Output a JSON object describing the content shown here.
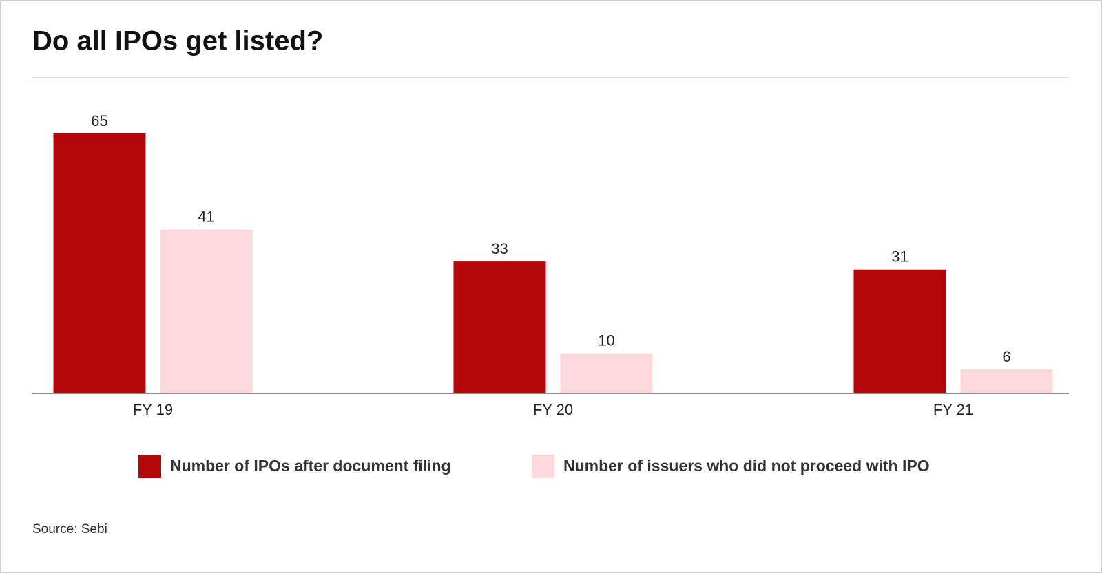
{
  "chart_data": {
    "type": "bar",
    "title": "Do all IPOs get listed?",
    "categories": [
      "FY 19",
      "FY 20",
      "FY 21"
    ],
    "series": [
      {
        "name": "Number of IPOs after document filing",
        "color": "#b30709",
        "values": [
          65,
          33,
          31
        ]
      },
      {
        "name": "Number of issuers who did not proceed with IPO",
        "color": "#fdd9dc",
        "values": [
          41,
          10,
          6
        ]
      }
    ],
    "source": "Source: Sebi"
  }
}
